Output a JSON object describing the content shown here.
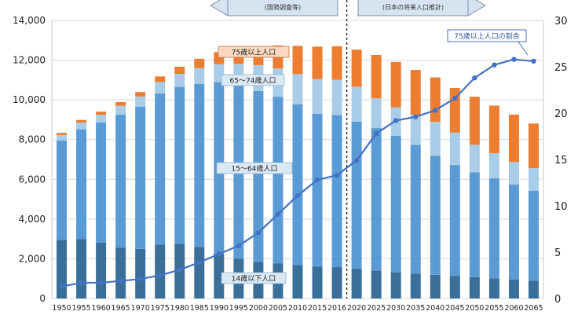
{
  "chart_data": {
    "type": "bar",
    "categories": [
      "1950",
      "1955",
      "1960",
      "1965",
      "1970",
      "1975",
      "1980",
      "1985",
      "1990",
      "1995",
      "2000",
      "2005",
      "2010",
      "2015",
      "2016",
      "2020",
      "2025",
      "2030",
      "2035",
      "2040",
      "2045",
      "2050",
      "2055",
      "2060",
      "2065"
    ],
    "series": [
      {
        "name": "14歳以下人口",
        "color": "#3a6f99",
        "values": [
          2950,
          3000,
          2810,
          2550,
          2500,
          2720,
          2750,
          2600,
          2250,
          2000,
          1850,
          1760,
          1680,
          1600,
          1580,
          1510,
          1410,
          1320,
          1250,
          1190,
          1140,
          1080,
          1020,
          950,
          900
        ]
      },
      {
        "name": "15～64歳人口",
        "color": "#5b9bd5",
        "values": [
          5000,
          5520,
          6050,
          6700,
          7150,
          7600,
          7900,
          8200,
          8650,
          8700,
          8600,
          8400,
          8100,
          7700,
          7660,
          7400,
          7170,
          6870,
          6490,
          6000,
          5580,
          5270,
          5030,
          4790,
          4530
        ]
      },
      {
        "name": "65～74歳人口",
        "color": "#a9cde8",
        "values": [
          280,
          330,
          390,
          450,
          520,
          580,
          660,
          800,
          900,
          1110,
          1300,
          1420,
          1520,
          1750,
          1770,
          1750,
          1500,
          1430,
          1510,
          1700,
          1630,
          1390,
          1270,
          1130,
          1130
        ]
      },
      {
        "name": "75歳以上人口",
        "color": "#ed7d31",
        "values": [
          110,
          140,
          160,
          190,
          220,
          280,
          360,
          470,
          600,
          720,
          900,
          1160,
          1420,
          1630,
          1690,
          1870,
          2180,
          2290,
          2260,
          2240,
          2250,
          2420,
          2390,
          2390,
          2250
        ]
      }
    ],
    "ratio_series": {
      "name": "75歳以上人口の割合",
      "color": "#4472c4",
      "values": [
        1.3,
        1.7,
        1.7,
        1.9,
        2.1,
        2.5,
        3.1,
        3.9,
        4.8,
        5.7,
        7.1,
        9.1,
        11.1,
        12.8,
        13.3,
        14.9,
        17.8,
        19.2,
        19.6,
        20.3,
        21.6,
        23.8,
        25.2,
        25.8,
        25.6
      ]
    },
    "ylim_left": [
      0,
      14000
    ],
    "ylim_right": [
      0,
      30
    ],
    "left_ticks": [
      "0",
      "2,000",
      "4,000",
      "6,000",
      "8,000",
      "10,000",
      "12,000",
      "14,000"
    ],
    "right_ticks": [
      "0",
      "5",
      "10",
      "15",
      "20",
      "25",
      "30"
    ],
    "band_labels": {
      "s75": "75歳以上人口",
      "s65": "65～74歳人口",
      "s15": "15～64歳人口",
      "s14": "14歳以下人口",
      "ratio": "75歳以上人口の割合"
    },
    "header_left": "(国勢調査等)",
    "header_right": "(日本の将来人口推計)",
    "grid": true,
    "divider_after": "2016"
  }
}
